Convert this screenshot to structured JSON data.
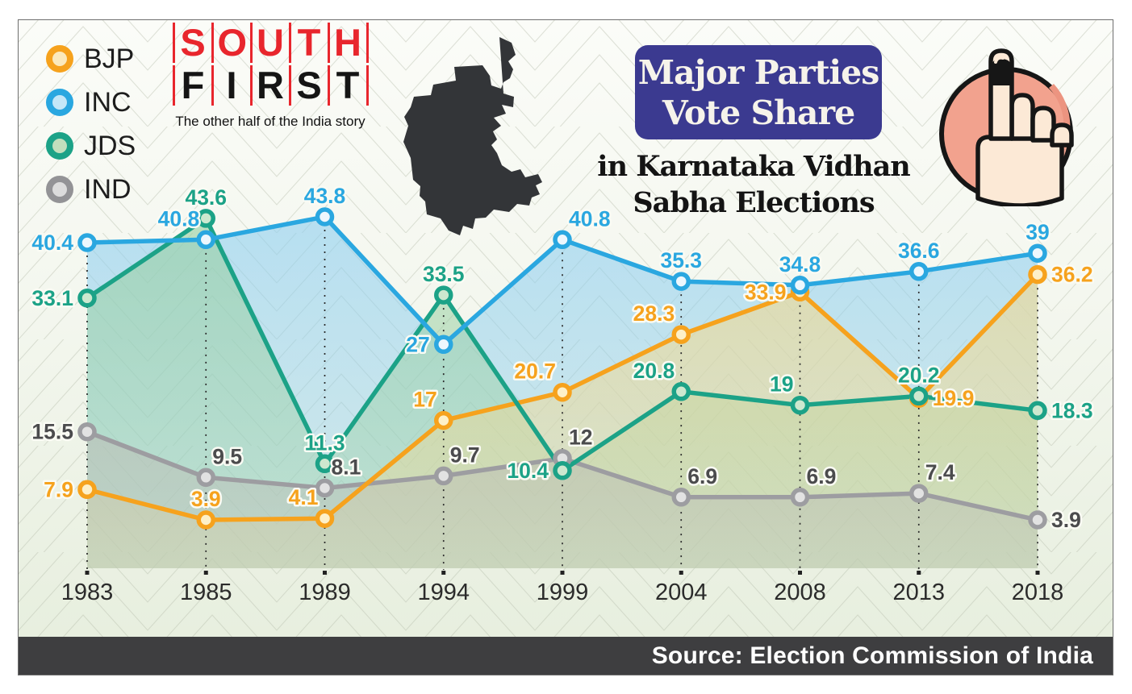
{
  "brand": {
    "word1": "SOUTH",
    "word2": "FIRST",
    "tagline": "The other half of the India story",
    "word1_color": "#E8262D",
    "word2_color": "#151515",
    "separator_color": "#E8262D"
  },
  "header": {
    "badge_line1": "Major Parties",
    "badge_line2": "Vote Share",
    "badge_bg": "#3B3A90",
    "subtitle_line1": "in Karnataka Vidhan",
    "subtitle_line2": "Sabha Elections"
  },
  "legend": {
    "items": [
      {
        "label": "BJP",
        "color": "#F6A21D",
        "tint": "#FBE9BC"
      },
      {
        "label": "INC",
        "color": "#2AA7E0",
        "tint": "#C4E7F8"
      },
      {
        "label": "JDS",
        "color": "#1CA287",
        "tint": "#C2DFBD"
      },
      {
        "label": "IND",
        "color": "#939396",
        "tint": "#DCDCDC"
      }
    ]
  },
  "footer": {
    "text": "Source: Election Commission of India",
    "bg": "#3E3E40",
    "color": "#FFFFFF"
  },
  "chart_data": {
    "type": "line",
    "title": "Major Parties Vote Share in Karnataka Vidhan Sabha Elections",
    "categories": [
      "1983",
      "1985",
      "1989",
      "1994",
      "1999",
      "2004",
      "2008",
      "2013",
      "2018"
    ],
    "series": [
      {
        "name": "BJP",
        "color": "#F6A21D",
        "marker_fill": "#FDF0C8",
        "area_fill": "#F3D98F",
        "label_color": "#F6A21D",
        "values": [
          7.9,
          3.9,
          4.1,
          17,
          20.7,
          28.3,
          33.9,
          19.9,
          36.2
        ]
      },
      {
        "name": "INC",
        "color": "#2AA7E0",
        "marker_fill": "#EDF7FD",
        "area_fill": "#8FCFEF",
        "label_color": "#2AA7E0",
        "values": [
          40.4,
          40.8,
          43.8,
          27,
          40.8,
          35.3,
          34.8,
          36.6,
          39
        ]
      },
      {
        "name": "JDS",
        "color": "#1CA287",
        "marker_fill": "#CDE8CF",
        "area_fill": "#98CFA1",
        "label_color": "#1CA287",
        "values": [
          33.1,
          43.6,
          11.3,
          33.5,
          10.4,
          20.8,
          19,
          20.2,
          18.3
        ]
      },
      {
        "name": "IND",
        "color": "#9D9DA1",
        "marker_fill": "#E2E2E2",
        "area_fill": "#BCBFB6",
        "label_color": "#4B4B4D",
        "values": [
          15.5,
          9.5,
          8.1,
          9.7,
          12,
          6.9,
          6.9,
          7.4,
          3.9
        ]
      }
    ],
    "ylim": [
      0,
      50
    ],
    "grid": "vertical-dashed",
    "legend_position": "top-left",
    "source": "Source: Election Commission of India"
  }
}
